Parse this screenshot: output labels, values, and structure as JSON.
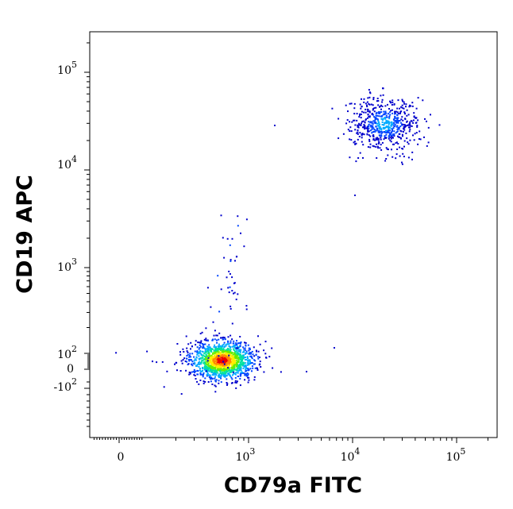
{
  "chart_data": {
    "type": "scatter",
    "plot_style": "density dot plot",
    "xlabel": "CD79a FITC",
    "ylabel": "CD19 APC",
    "x_scale": "biexponential",
    "y_scale": "biexponential",
    "x_ticks": [
      {
        "base": "0",
        "exp": ""
      },
      {
        "base": "10",
        "exp": "3"
      },
      {
        "base": "10",
        "exp": "4"
      },
      {
        "base": "10",
        "exp": "5"
      }
    ],
    "y_ticks": [
      {
        "base": "10",
        "exp": "5"
      },
      {
        "base": "10",
        "exp": "4"
      },
      {
        "base": "10",
        "exp": "3"
      },
      {
        "base": "10",
        "exp": "2"
      },
      {
        "base": "0",
        "exp": ""
      },
      {
        "base": "-10",
        "exp": "2"
      }
    ],
    "populations": [
      {
        "center_x": 550,
        "center_y": 60,
        "density": "high",
        "spread": "compact"
      },
      {
        "center_x": 20000,
        "center_y": 30000,
        "density": "low",
        "spread": "diffuse"
      }
    ],
    "density_colors": [
      "#0000cc",
      "#0044ff",
      "#00aaff",
      "#00e0a0",
      "#66ee00",
      "#ffee00",
      "#ff8800",
      "#ee0000"
    ],
    "grid": false,
    "legend": "none"
  }
}
